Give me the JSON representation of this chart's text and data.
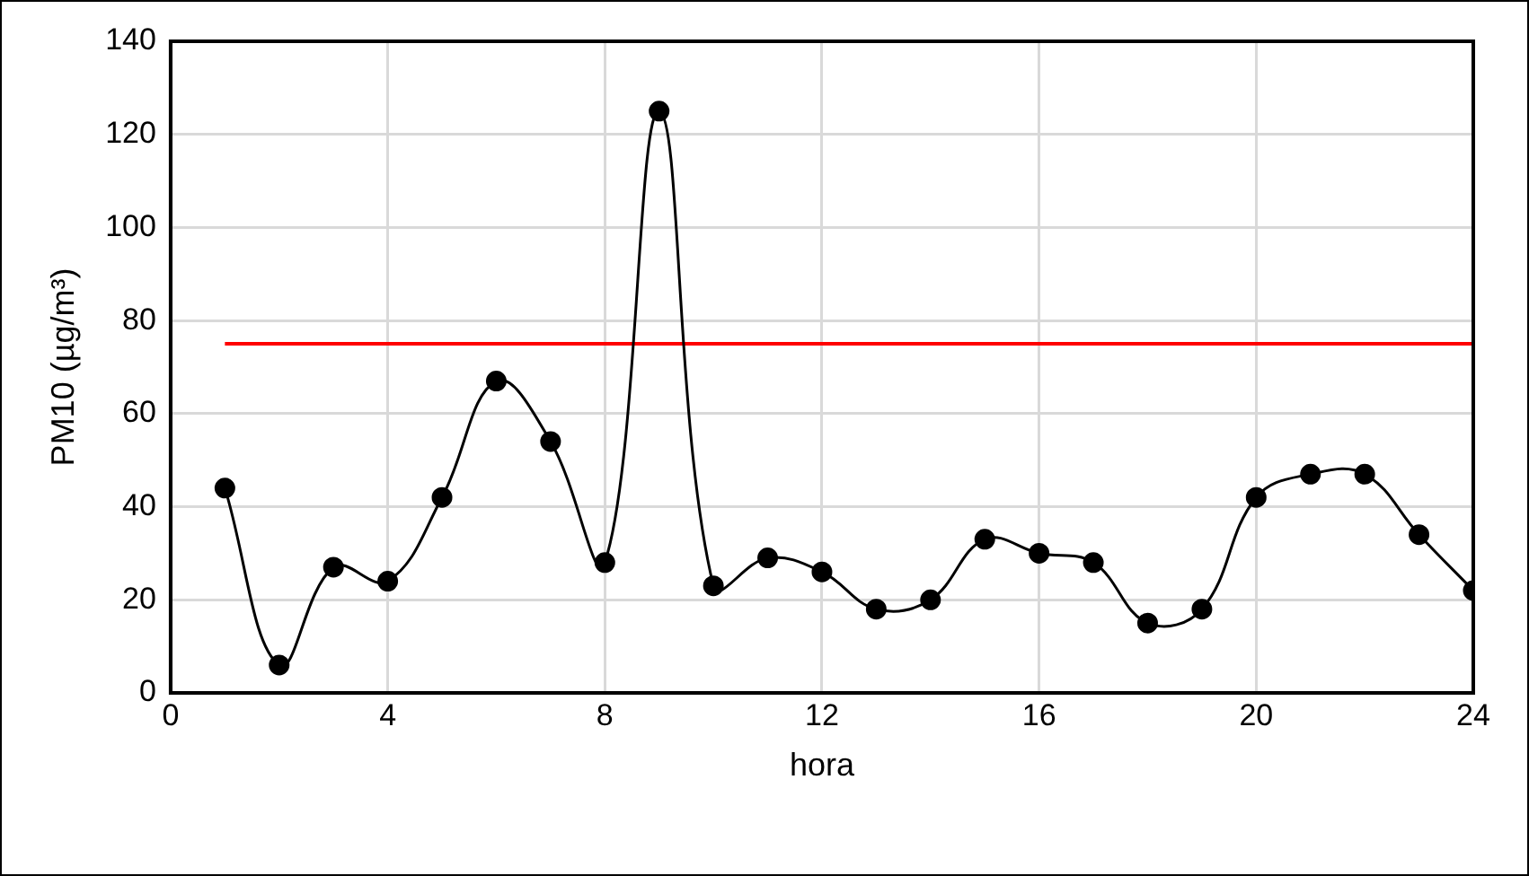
{
  "chart_data": {
    "type": "line",
    "xlabel": "hora",
    "ylabel": "PM10 (µg/m³)",
    "x": [
      1,
      2,
      3,
      4,
      5,
      6,
      7,
      8,
      9,
      10,
      11,
      12,
      13,
      14,
      15,
      16,
      17,
      18,
      19,
      20,
      21,
      22,
      23,
      24
    ],
    "series": [
      {
        "color": "#000000",
        "values": [
          44,
          6,
          27,
          24,
          42,
          67,
          54,
          28,
          125,
          23,
          29,
          26,
          18,
          20,
          33,
          30,
          28,
          15,
          18,
          42,
          47,
          47,
          34,
          22
        ]
      }
    ],
    "xlim": [
      0,
      24
    ],
    "xticks": [
      0,
      4,
      8,
      12,
      16,
      20,
      24
    ],
    "ylim": [
      0,
      140
    ],
    "yticks": [
      0,
      20,
      40,
      60,
      80,
      100,
      120,
      140
    ],
    "ref_lines": [
      {
        "axis": "y",
        "value": 75,
        "color": "#ff0000",
        "line_style": "solid"
      }
    ],
    "grid": true,
    "marker": "circle",
    "line_style": "solid"
  }
}
